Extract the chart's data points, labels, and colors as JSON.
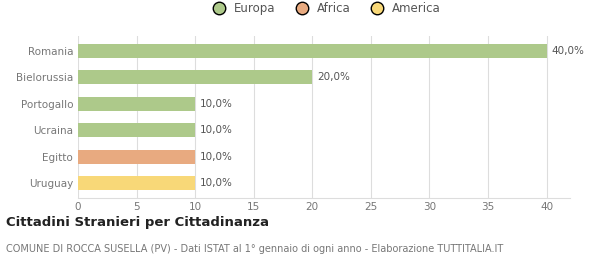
{
  "categories": [
    "Romania",
    "Bielorussia",
    "Portogallo",
    "Ucraina",
    "Egitto",
    "Uruguay"
  ],
  "values": [
    40.0,
    20.0,
    10.0,
    10.0,
    10.0,
    10.0
  ],
  "labels": [
    "40,0%",
    "20,0%",
    "10,0%",
    "10,0%",
    "10,0%",
    "10,0%"
  ],
  "bar_colors": [
    "#adc98a",
    "#adc98a",
    "#adc98a",
    "#adc98a",
    "#e8aa80",
    "#f8d878"
  ],
  "legend_items": [
    {
      "label": "Europa",
      "color": "#adc98a"
    },
    {
      "label": "Africa",
      "color": "#e8aa80"
    },
    {
      "label": "America",
      "color": "#f8d878"
    }
  ],
  "xlim": [
    0,
    42
  ],
  "xticks": [
    0,
    5,
    10,
    15,
    20,
    25,
    30,
    35,
    40
  ],
  "title_bold": "Cittadini Stranieri per Cittadinanza",
  "subtitle": "COMUNE DI ROCCA SUSELLA (PV) - Dati ISTAT al 1° gennaio di ogni anno - Elaborazione TUTTITALIA.IT",
  "background_color": "#ffffff",
  "grid_color": "#dddddd",
  "title_fontsize": 9.5,
  "subtitle_fontsize": 7.0,
  "label_fontsize": 7.5,
  "tick_fontsize": 7.5,
  "legend_fontsize": 8.5,
  "bar_height": 0.52
}
